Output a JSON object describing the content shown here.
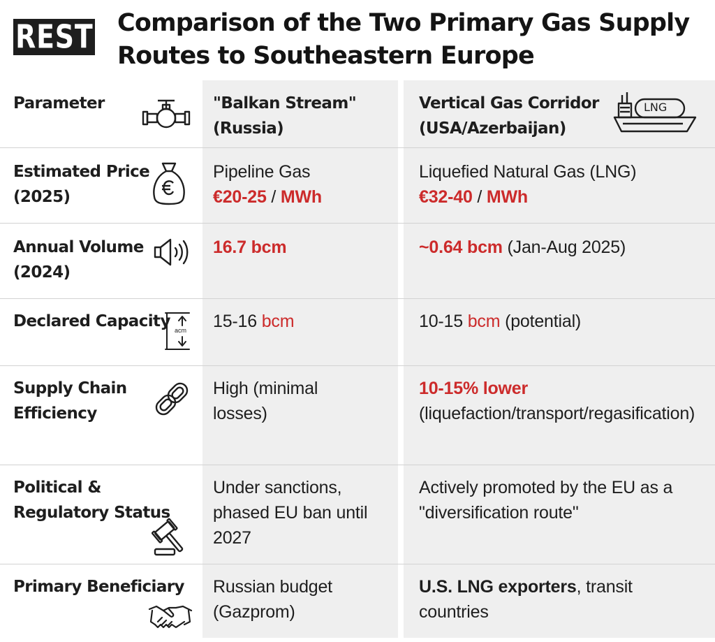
{
  "logo": {
    "text": "REST"
  },
  "title": "Comparison of the Two Primary Gas Supply Routes to Southeastern Europe",
  "colors": {
    "accent_red": "#cc2b2b",
    "text": "#1e1e1e",
    "column_shade": "#efefef"
  },
  "table": {
    "header": {
      "param": "Parameter",
      "col1_line1": "\"Balkan Stream\"",
      "col1_line2": "(Russia)",
      "col2_line1": "Vertical Gas Corridor",
      "col2_line2": "(USA/Azerbaijan)",
      "ship_label": "LNG",
      "param_icon": "valve-pipe-icon",
      "col2_icon": "lng-tanker-icon"
    },
    "rows": [
      {
        "param_l1": "Estimated Price",
        "param_l2": "(2025)",
        "icon": "money-bag-euro-icon",
        "c1_text": "Pipeline Gas",
        "c1_price": "€20-25",
        "c1_sep": " / ",
        "c1_unit": "MWh",
        "c2_text": "Liquefied Natural Gas (LNG)",
        "c2_price": "€32-40",
        "c2_sep": " / ",
        "c2_unit": "MWh"
      },
      {
        "param_l1": "Annual Volume",
        "param_l2": "(2024)",
        "icon": "volume-speaker-icon",
        "c1_value": "16.7 bcm",
        "c2_value": "~0.64 bcm",
        "c2_note": " (Jan-Aug 2025)"
      },
      {
        "param_l1": "Declared Capacity",
        "icon": "capacity-gauge-icon",
        "icon_text": "acm",
        "c1_num": "15-16 ",
        "c1_unit": "bcm",
        "c2_num": "10-15 ",
        "c2_unit": "bcm",
        "c2_note": " (potential)"
      },
      {
        "param_l1": "Supply Chain",
        "param_l2": "Efficiency",
        "icon": "chain-link-icon",
        "c1_l1": "High (minimal",
        "c1_l2": "losses)",
        "c2_highlight": "10-15% lower",
        "c2_l2": "(liquefaction/transport/regasification)"
      },
      {
        "param_l1": "Political &",
        "param_l2": "Regulatory Status",
        "icon": "gavel-icon",
        "c1_l1": "Under sanctions,",
        "c1_l2": "phased EU ban until",
        "c1_l3": "2027",
        "c2_l1": "Actively promoted by the EU as a",
        "c2_l2": "\"diversification route\""
      },
      {
        "param_l1": "Primary Beneficiary",
        "icon": "handshake-icon",
        "c1_l1": "Russian budget",
        "c1_l2": "(Gazprom)",
        "c2_bold": "U.S. LNG exporters",
        "c2_rest": ", transit",
        "c2_l2": "countries"
      }
    ]
  }
}
